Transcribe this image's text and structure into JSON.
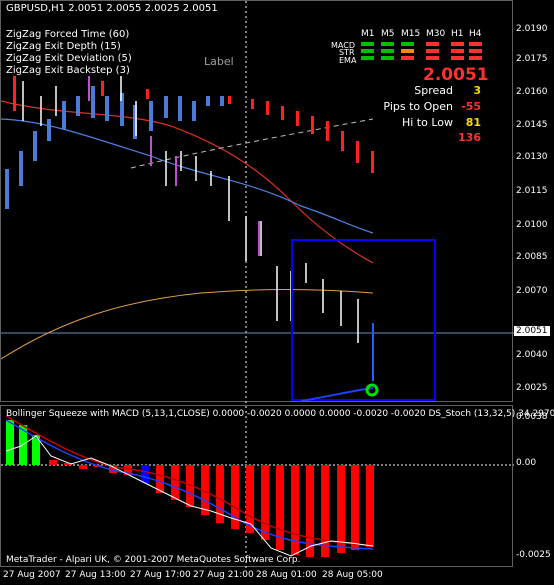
{
  "header": {
    "symbol_line": "GBPUSD,H1  2.0051 2.0055 2.0025 2.0051",
    "indicators": [
      "ZigZag Forced Time (60)",
      "ZigZag Exit Depth (15)",
      "ZigZag Exit Deviation (5)",
      "ZigZag Exit Backstep (3)"
    ]
  },
  "chart_label": "Label",
  "mtf_table": {
    "timeframes": [
      "M1",
      "M5",
      "M15",
      "M30",
      "H1",
      "H4"
    ],
    "rows": [
      {
        "label": "MACD",
        "colors": [
          "#00c000",
          "#00c000",
          "#00c000",
          "#ff3030",
          "#ff3030",
          "#ff3030"
        ]
      },
      {
        "label": "STR",
        "colors": [
          "#00c000",
          "#00c000",
          "#ff8c00",
          "#ff3030",
          "#ff3030",
          "#ff3030"
        ]
      },
      {
        "label": "EMA",
        "colors": [
          "#00c000",
          "#00c000",
          "#ff3030",
          "#ff3030",
          "#ff3030",
          "#ff3030"
        ]
      }
    ]
  },
  "info_panel": {
    "big_price": "2.0051",
    "rows": [
      {
        "label": "Spread",
        "value": "3",
        "color": "#ffd700"
      },
      {
        "label": "Pips to Open",
        "value": "-55",
        "color": "#ff3030"
      },
      {
        "label": "Hi to Low",
        "value": "81",
        "color": "#ffd700"
      },
      {
        "label": "",
        "value": "136",
        "color": "#ff3030"
      }
    ]
  },
  "price_axis": {
    "ticks": [
      "2.0190",
      "2.0175",
      "2.0160",
      "2.0145",
      "2.0130",
      "2.0115",
      "2.0100",
      "2.0085",
      "2.0070",
      "2.0051",
      "2.0040",
      "2.0025"
    ],
    "current": "2.0051"
  },
  "sub_window": {
    "title": "Bollinger Squeeze with MACD (5,13,1,CLOSE) 0.0000 -0.0020 0.0000 0.0000 -0.0020 -0.0020   DS_Stoch (13,32,5) 34.2970",
    "ticks": [
      "0.0038",
      "0.00",
      "-0.0025"
    ]
  },
  "copyright": "MetaTrader - Alpari UK, © 2001-2007 MetaQuotes Software Corp.",
  "time_axis": [
    "27 Aug 2007",
    "27 Aug 13:00",
    "27 Aug 17:00",
    "27 Aug 21:00",
    "28 Aug 01:00",
    "28 Aug 05:00"
  ],
  "colors": {
    "bull_candle": "#ffffff",
    "bear_candle": "#ff2020",
    "blue_candle": "#4b7bd6",
    "magenta_candle": "#c050d0",
    "box": "#0000ff",
    "hist_red": "#ff0000",
    "hist_green": "#00ff00",
    "hist_blue": "#0000ff"
  }
}
